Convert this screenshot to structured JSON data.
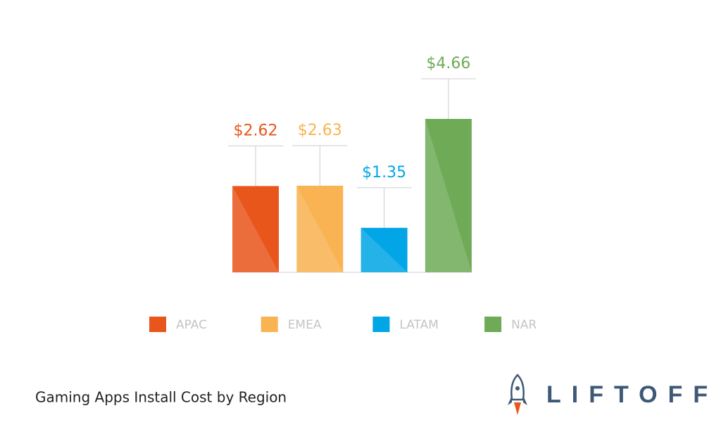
{
  "chart_data": {
    "type": "bar",
    "title": "Gaming Apps Install Cost by Region",
    "categories": [
      "APAC",
      "EMEA",
      "LATAM",
      "NAR"
    ],
    "values": [
      2.62,
      2.63,
      1.35,
      4.66
    ],
    "value_labels": [
      "$2.62",
      "$2.63",
      "$1.35",
      "$4.66"
    ],
    "colors": [
      "#e9561c",
      "#f9b352",
      "#02a6e6",
      "#6fab57"
    ]
  },
  "logo_text": "LIFTOFF"
}
